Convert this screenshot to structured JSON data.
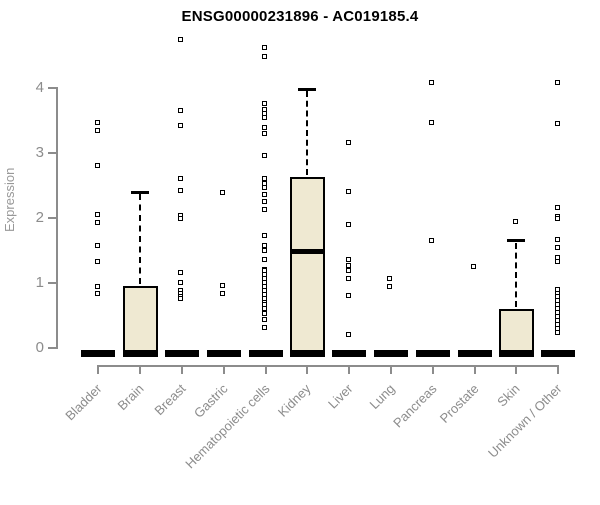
{
  "title": "ENSG00000231896 - AC019185.4",
  "colors": {
    "background": "#ffffff",
    "title": "#000000",
    "axis": "#8c8c8c",
    "tick_label": "#8c8c8c",
    "box_fill": "#efe9d2",
    "box_stroke": "#000000",
    "outlier_stroke": "#000000",
    "outlier_fill": "#ffffff"
  },
  "chart_data": {
    "type": "boxplot",
    "title": "ENSG00000231896 - AC019185.4",
    "ylabel": "Expression",
    "xlabel": "",
    "ylim": [
      0,
      4.8
    ],
    "yticks": [
      0,
      1,
      2,
      3,
      4
    ],
    "grid": false,
    "legend": null,
    "categories": [
      "Bladder",
      "Brain",
      "Breast",
      "Gastric",
      "Hematopoietic cells",
      "Kidney",
      "Liver",
      "Lung",
      "Pancreas",
      "Prostate",
      "Skin",
      "Unknown / Other"
    ],
    "series": [
      {
        "name": "Bladder",
        "q1": 0,
        "median": 0,
        "q3": 0,
        "whisker_low": 0,
        "whisker_high": 0,
        "outliers": [
          3.46,
          3.33,
          2.79,
          2.04,
          1.91,
          1.56,
          1.31,
          0.93,
          0.82
        ]
      },
      {
        "name": "Brain",
        "q1": 0,
        "median": 0,
        "q3": 0.95,
        "whisker_low": 0,
        "whisker_high": 2.4,
        "outliers": []
      },
      {
        "name": "Breast",
        "q1": 0,
        "median": 0,
        "q3": 0,
        "whisker_low": 0,
        "whisker_high": 0,
        "outliers": [
          4.73,
          3.64,
          3.41,
          2.59,
          2.41,
          2.02,
          1.98,
          1.14,
          1.0,
          0.87,
          0.82,
          0.78,
          0.74
        ]
      },
      {
        "name": "Gastric",
        "q1": 0,
        "median": 0,
        "q3": 0,
        "whisker_low": 0,
        "whisker_high": 0,
        "outliers": [
          2.38,
          0.95,
          0.82
        ]
      },
      {
        "name": "Hematopoietic cells",
        "q1": 0,
        "median": 0,
        "q3": 0,
        "whisker_low": 0,
        "whisker_high": 0,
        "outliers": [
          4.61,
          4.47,
          3.74,
          3.66,
          3.6,
          3.53,
          3.38,
          3.28,
          2.95,
          2.6,
          2.52,
          2.45,
          2.35,
          2.24,
          2.12,
          1.71,
          1.56,
          1.48,
          1.35,
          1.2,
          1.17,
          1.11,
          1.05,
          0.99,
          0.93,
          0.87,
          0.81,
          0.75,
          0.69,
          0.66,
          0.6,
          0.51,
          0.43,
          0.3
        ]
      },
      {
        "name": "Kidney",
        "q1": 0,
        "median": 1.48,
        "q3": 2.63,
        "whisker_low": 0,
        "whisker_high": 3.98,
        "outliers": []
      },
      {
        "name": "Liver",
        "q1": 0,
        "median": 0,
        "q3": 0,
        "whisker_low": 0,
        "whisker_high": 0,
        "outliers": [
          3.15,
          2.4,
          1.88,
          1.34,
          1.26,
          1.17,
          1.05,
          0.79,
          0.2
        ]
      },
      {
        "name": "Lung",
        "q1": 0,
        "median": 0,
        "q3": 0,
        "whisker_low": 0,
        "whisker_high": 0,
        "outliers": [
          1.06,
          0.93
        ]
      },
      {
        "name": "Pancreas",
        "q1": 0,
        "median": 0,
        "q3": 0,
        "whisker_low": 0,
        "whisker_high": 0,
        "outliers": [
          4.07,
          3.46,
          1.64
        ]
      },
      {
        "name": "Prostate",
        "q1": 0,
        "median": 0,
        "q3": 0,
        "whisker_low": 0,
        "whisker_high": 0,
        "outliers": [
          1.24
        ]
      },
      {
        "name": "Skin",
        "q1": 0,
        "median": 0,
        "q3": 0.6,
        "whisker_low": 0,
        "whisker_high": 1.65,
        "outliers": [
          1.93
        ]
      },
      {
        "name": "Unknown / Other",
        "q1": 0,
        "median": 0,
        "q3": 0,
        "whisker_low": 0,
        "whisker_high": 0,
        "outliers": [
          4.07,
          3.44,
          2.15,
          2.01,
          1.98,
          1.66,
          1.53,
          1.37,
          1.32,
          0.89,
          0.83,
          0.77,
          0.71,
          0.65,
          0.59,
          0.53,
          0.47,
          0.41,
          0.35,
          0.29,
          0.23
        ]
      }
    ]
  }
}
